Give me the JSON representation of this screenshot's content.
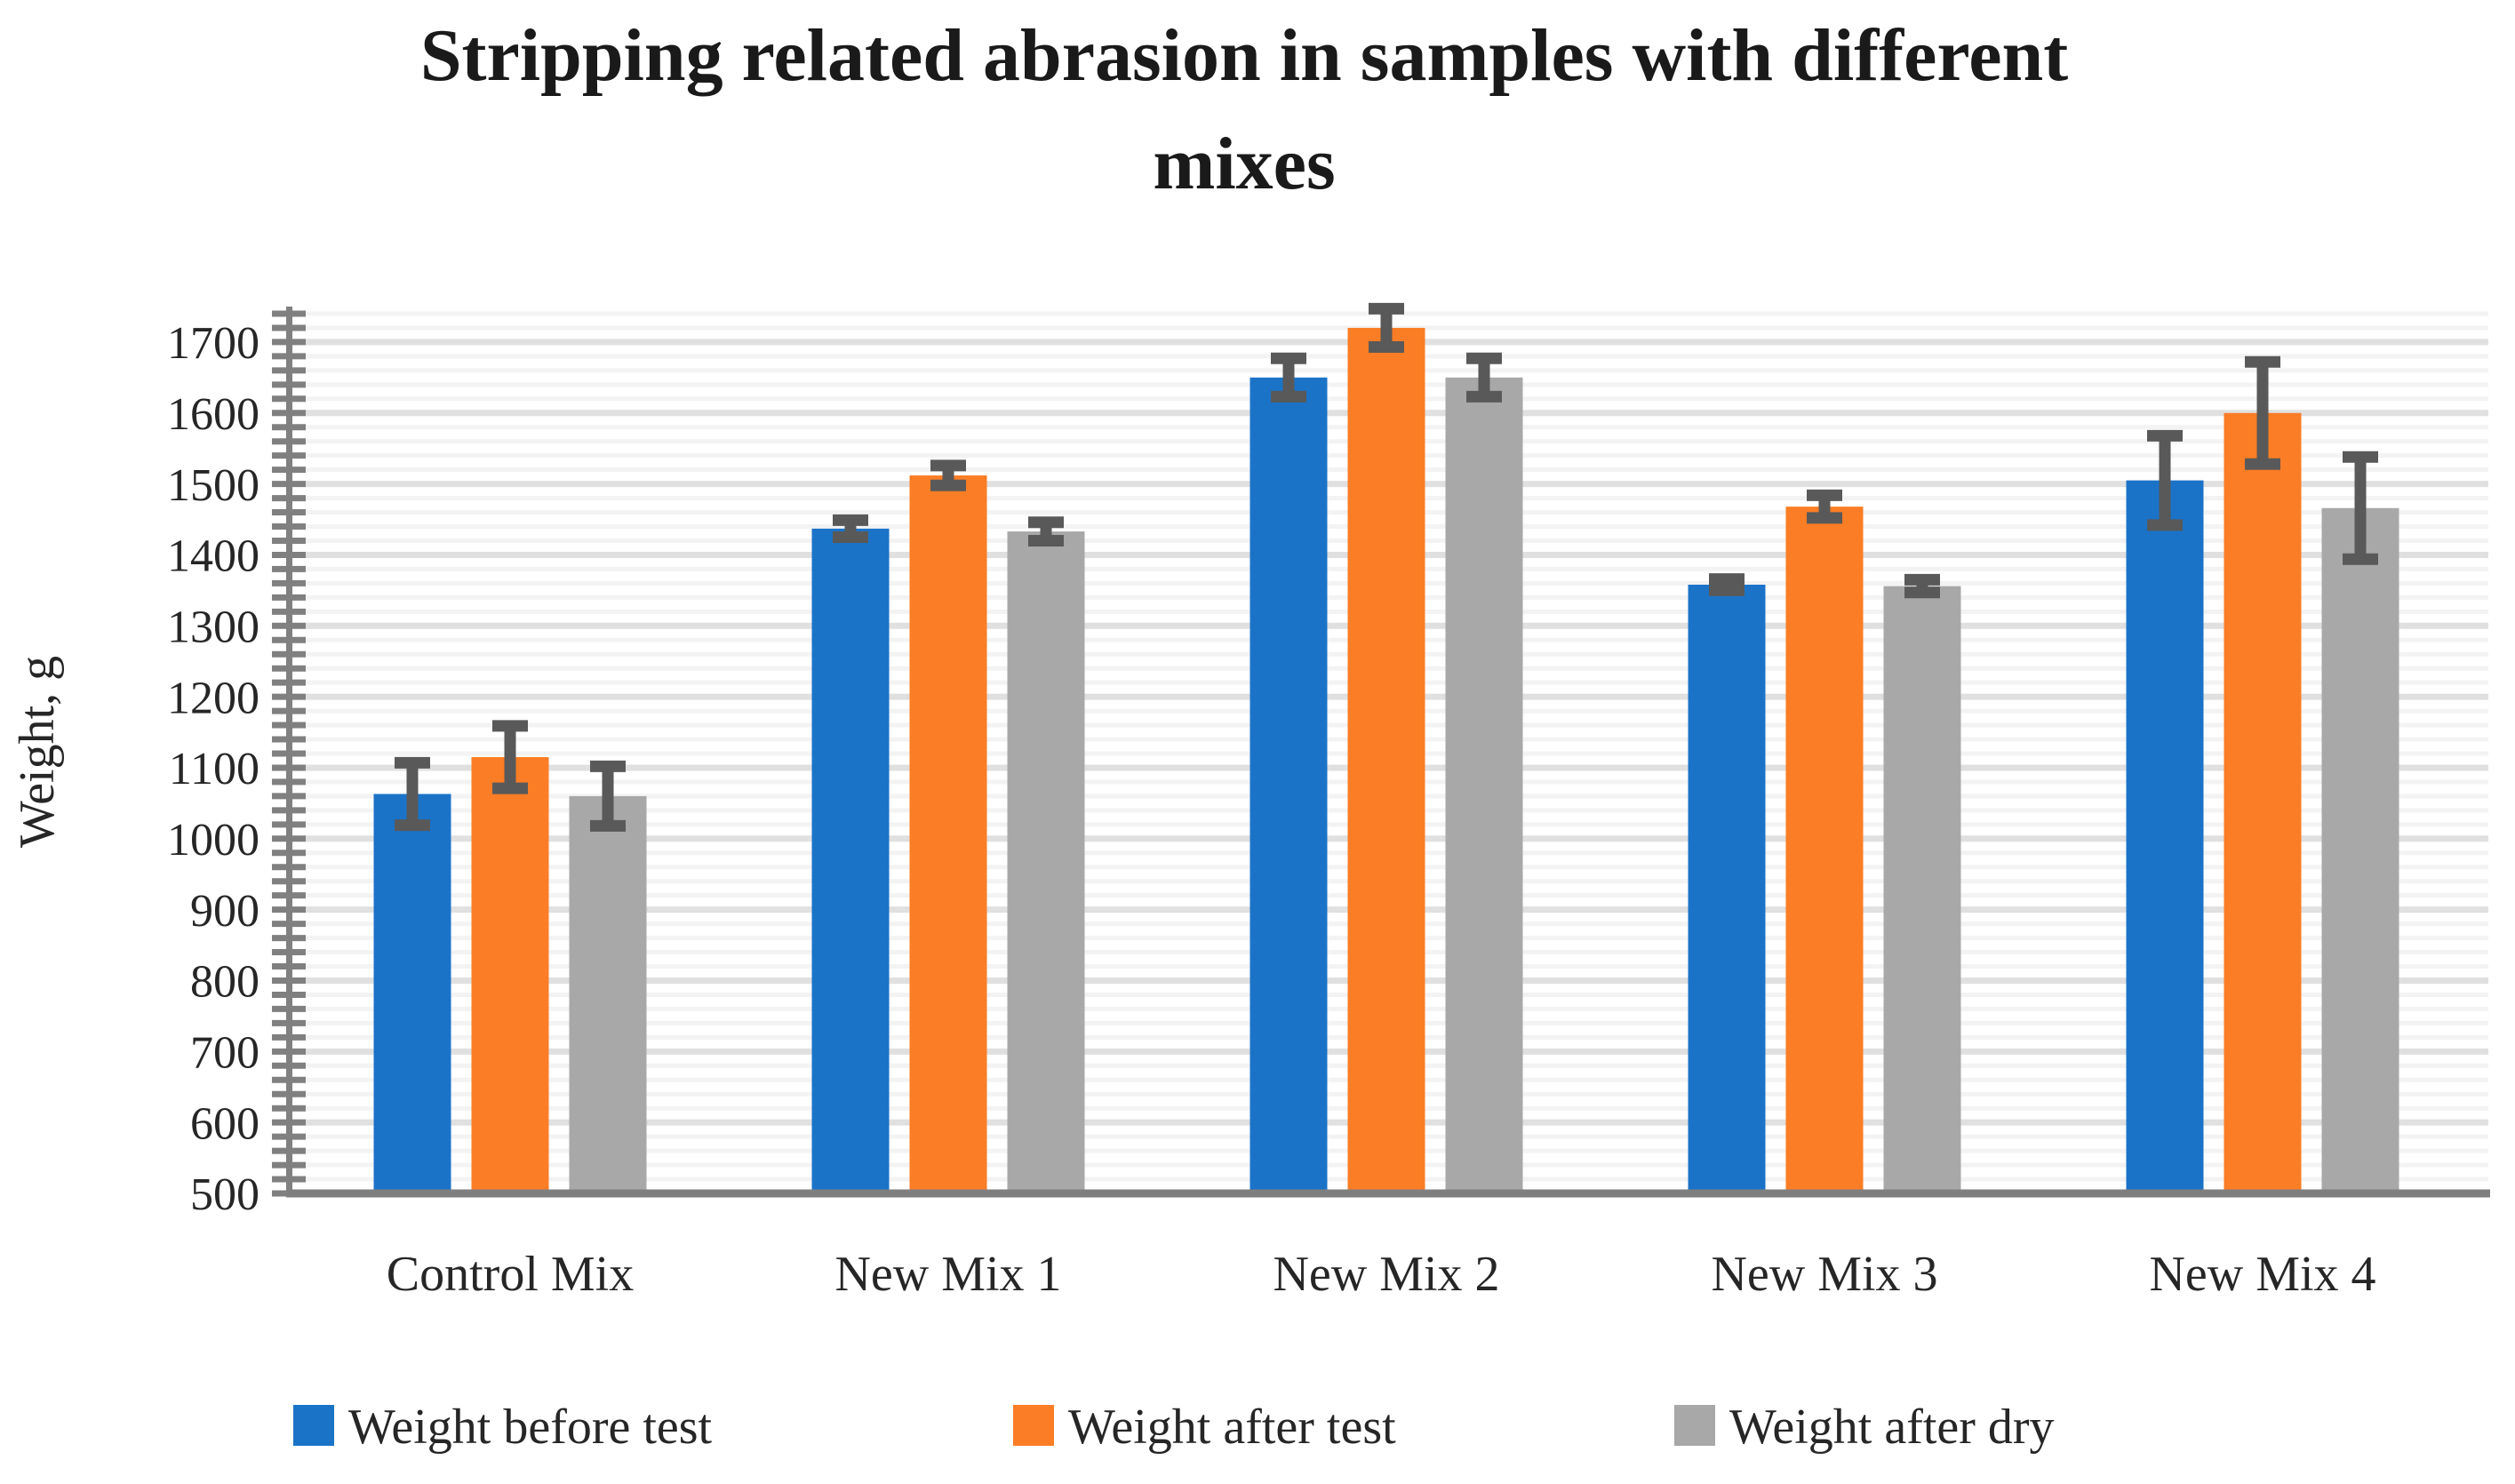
{
  "chart_data": {
    "type": "bar",
    "title": "Stripping related abrasion in samples with different mixes",
    "title_lines": [
      "Stripping related abrasion in samples with different",
      "mixes"
    ],
    "ylabel": "Weight, g",
    "categories": [
      "Control Mix",
      "New Mix 1",
      "New Mix 2",
      "New Mix 3",
      "New Mix 4"
    ],
    "series": [
      {
        "name": "Weight before test",
        "color": "#1B73C8",
        "values": [
          1063,
          1437,
          1650,
          1358,
          1505
        ],
        "errors": [
          44,
          12,
          27,
          8,
          63
        ]
      },
      {
        "name": "Weight after test",
        "color": "#FB7D25",
        "values": [
          1115,
          1512,
          1720,
          1468,
          1600
        ],
        "errors": [
          44,
          14,
          27,
          16,
          72
        ]
      },
      {
        "name": "Weight after dry",
        "color": "#A8A8A8",
        "values": [
          1060,
          1433,
          1650,
          1356,
          1466
        ],
        "errors": [
          42,
          13,
          27,
          9,
          72
        ]
      }
    ],
    "ylim": [
      500,
      1745
    ],
    "ytick_start": 500,
    "ytick_end": 1700,
    "ytick_step": 100,
    "minor_step": 20,
    "grid": true,
    "legend_position": "bottom",
    "error_bar_color": "#595959",
    "axis_color": "#808080",
    "x_axis_color": "#7F7F7F",
    "gridline_minor_color": "#F3F3F3",
    "gridline_major_color": "#E0E0E0",
    "text_color": "#262626"
  }
}
